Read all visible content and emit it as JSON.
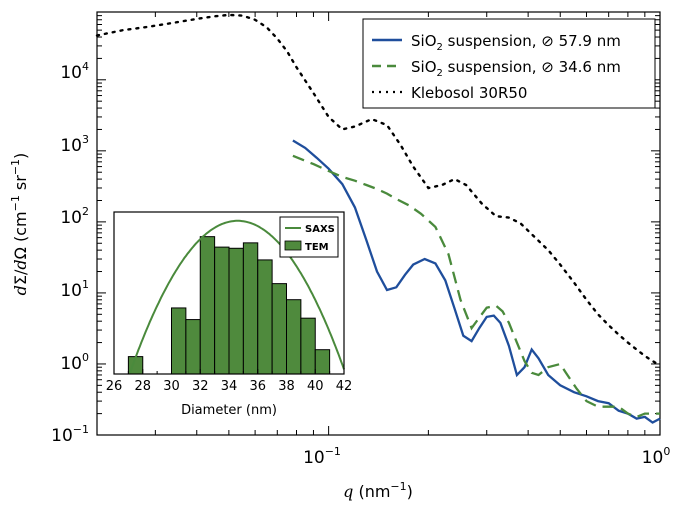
{
  "colors": {
    "blue": "#1f4e9c",
    "green": "#4a8a3c",
    "black": "#000000",
    "bar_fill": "#4f8a3d",
    "bar_edge": "#000000"
  },
  "chart_data": [
    {
      "type": "line",
      "xlabel": "q (nm⁻¹)",
      "ylabel": "dΣ/dΩ (cm⁻¹ sr⁻¹)",
      "xscale": "log",
      "yscale": "log",
      "xlim": [
        0.02,
        1.0
      ],
      "ylim": [
        0.1,
        90000
      ],
      "x_ticks": [
        0.1,
        1
      ],
      "x_tick_labels": [
        "10⁻¹",
        "10⁰"
      ],
      "y_ticks": [
        0.1,
        1,
        10,
        100,
        1000,
        10000
      ],
      "y_tick_labels": [
        "10⁻¹",
        "10⁰",
        "10¹",
        "10²",
        "10³",
        "10⁴"
      ],
      "grid": false,
      "legend_position": "top-right",
      "series": [
        {
          "name": "SiO₂ suspension, ⌀ 57.9 nm",
          "style": "solid",
          "color": "#1f4e9c",
          "points": [
            [
              0.078,
              1400
            ],
            [
              0.085,
              1100
            ],
            [
              0.092,
              800
            ],
            [
              0.1,
              560
            ],
            [
              0.11,
              340
            ],
            [
              0.12,
              160
            ],
            [
              0.13,
              55
            ],
            [
              0.14,
              20
            ],
            [
              0.15,
              11
            ],
            [
              0.16,
              12
            ],
            [
              0.17,
              18
            ],
            [
              0.18,
              25
            ],
            [
              0.195,
              30
            ],
            [
              0.21,
              26
            ],
            [
              0.225,
              15
            ],
            [
              0.24,
              6
            ],
            [
              0.255,
              2.5
            ],
            [
              0.27,
              2.1
            ],
            [
              0.285,
              3.2
            ],
            [
              0.3,
              4.6
            ],
            [
              0.315,
              4.8
            ],
            [
              0.33,
              3.8
            ],
            [
              0.35,
              1.8
            ],
            [
              0.37,
              0.7
            ],
            [
              0.39,
              0.9
            ],
            [
              0.41,
              1.6
            ],
            [
              0.43,
              1.2
            ],
            [
              0.46,
              0.7
            ],
            [
              0.5,
              0.5
            ],
            [
              0.55,
              0.4
            ],
            [
              0.6,
              0.35
            ],
            [
              0.65,
              0.3
            ],
            [
              0.7,
              0.28
            ],
            [
              0.75,
              0.22
            ],
            [
              0.8,
              0.2
            ],
            [
              0.85,
              0.17
            ],
            [
              0.9,
              0.18
            ],
            [
              0.95,
              0.15
            ],
            [
              1.0,
              0.17
            ]
          ]
        },
        {
          "name": "SiO₂ suspension, ⌀ 34.6 nm",
          "style": "dashed",
          "color": "#4a8a3c",
          "points": [
            [
              0.078,
              850
            ],
            [
              0.09,
              650
            ],
            [
              0.1,
              520
            ],
            [
              0.11,
              430
            ],
            [
              0.12,
              380
            ],
            [
              0.13,
              330
            ],
            [
              0.14,
              290
            ],
            [
              0.15,
              250
            ],
            [
              0.16,
              210
            ],
            [
              0.175,
              170
            ],
            [
              0.19,
              130
            ],
            [
              0.21,
              85
            ],
            [
              0.23,
              35
            ],
            [
              0.25,
              8
            ],
            [
              0.27,
              3.2
            ],
            [
              0.285,
              4.5
            ],
            [
              0.3,
              6.2
            ],
            [
              0.32,
              6.6
            ],
            [
              0.335,
              5.5
            ],
            [
              0.35,
              3.8
            ],
            [
              0.37,
              2
            ],
            [
              0.39,
              1.1
            ],
            [
              0.41,
              0.75
            ],
            [
              0.43,
              0.7
            ],
            [
              0.46,
              0.9
            ],
            [
              0.5,
              1
            ],
            [
              0.52,
              0.75
            ],
            [
              0.56,
              0.45
            ],
            [
              0.6,
              0.3
            ],
            [
              0.65,
              0.25
            ],
            [
              0.7,
              0.25
            ],
            [
              0.75,
              0.25
            ],
            [
              0.8,
              0.2
            ],
            [
              0.85,
              0.18
            ],
            [
              0.9,
              0.2
            ],
            [
              0.95,
              0.2
            ],
            [
              1.0,
              0.2
            ]
          ]
        },
        {
          "name": "Klebosol 30R50",
          "style": "dotted",
          "color": "#000000",
          "points": [
            [
              0.02,
              42000
            ],
            [
              0.024,
              50000
            ],
            [
              0.028,
              55000
            ],
            [
              0.033,
              62000
            ],
            [
              0.04,
              72000
            ],
            [
              0.045,
              78000
            ],
            [
              0.05,
              82000
            ],
            [
              0.055,
              80000
            ],
            [
              0.06,
              70000
            ],
            [
              0.065,
              55000
            ],
            [
              0.07,
              38000
            ],
            [
              0.075,
              25000
            ],
            [
              0.08,
              15000
            ],
            [
              0.09,
              6500
            ],
            [
              0.1,
              3000
            ],
            [
              0.11,
              2000
            ],
            [
              0.12,
              2200
            ],
            [
              0.135,
              2800
            ],
            [
              0.15,
              2300
            ],
            [
              0.165,
              1200
            ],
            [
              0.18,
              600
            ],
            [
              0.2,
              300
            ],
            [
              0.22,
              330
            ],
            [
              0.24,
              400
            ],
            [
              0.26,
              330
            ],
            [
              0.29,
              180
            ],
            [
              0.32,
              120
            ],
            [
              0.35,
              115
            ],
            [
              0.38,
              95
            ],
            [
              0.42,
              60
            ],
            [
              0.46,
              40
            ],
            [
              0.5,
              25
            ],
            [
              0.55,
              14
            ],
            [
              0.6,
              8
            ],
            [
              0.65,
              5
            ],
            [
              0.7,
              3.5
            ],
            [
              0.75,
              2.6
            ],
            [
              0.8,
              2
            ],
            [
              0.85,
              1.6
            ],
            [
              0.9,
              1.3
            ],
            [
              0.95,
              1.1
            ],
            [
              1.0,
              0.95
            ]
          ]
        }
      ]
    },
    {
      "type": "bar",
      "xlabel": "Diameter (nm)",
      "xlim": [
        26,
        42
      ],
      "ylim": [
        0.6,
        170
      ],
      "yscale": "log",
      "x_ticks": [
        26,
        28,
        30,
        32,
        34,
        36,
        38,
        40,
        42
      ],
      "legend_position": "top-right",
      "bins": [
        [
          27,
          28,
          1.1
        ],
        [
          30,
          31,
          6
        ],
        [
          31,
          32,
          4
        ],
        [
          32,
          33,
          72
        ],
        [
          33,
          34,
          50
        ],
        [
          34,
          35,
          48
        ],
        [
          35,
          36,
          58
        ],
        [
          36,
          37,
          32
        ],
        [
          37,
          38,
          14
        ],
        [
          38,
          39,
          8
        ],
        [
          39,
          40,
          4.2
        ],
        [
          40,
          41,
          1.4
        ]
      ],
      "series": [
        {
          "name": "SAXS",
          "style": "line",
          "color": "#4a8a3c",
          "peak_x": 34.6,
          "peak_y": 125,
          "sigma": 2.3
        },
        {
          "name": "TEM",
          "style": "bar",
          "color": "#4f8a3d"
        }
      ]
    }
  ]
}
